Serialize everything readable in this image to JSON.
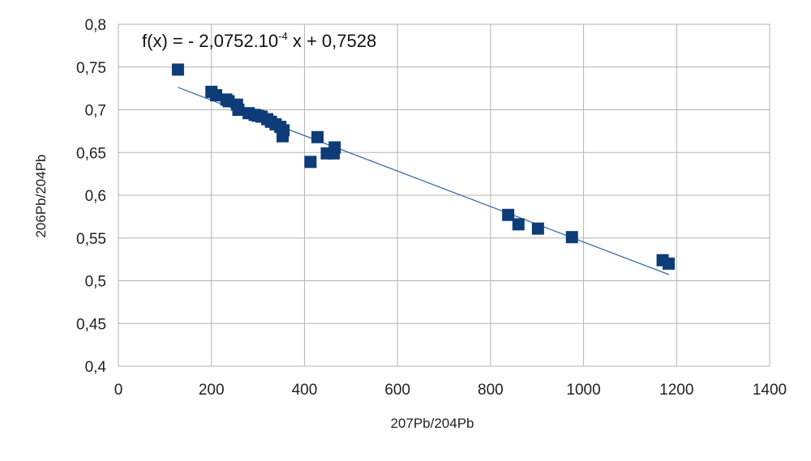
{
  "chart_data": {
    "type": "scatter",
    "xlabel": "207Pb/204Pb",
    "ylabel": "206Pb/204Pb",
    "xlim": [
      0,
      1400
    ],
    "ylim": [
      0.4,
      0.8
    ],
    "x_ticks": [
      "0",
      "200",
      "400",
      "600",
      "800",
      "1000",
      "1200",
      "1400"
    ],
    "y_ticks": [
      "0,4",
      "0,45",
      "0,5",
      "0,55",
      "0,6",
      "0,65",
      "0,7",
      "0,75",
      "0,8"
    ],
    "grid": true,
    "legend": "none",
    "marker_color": "#0d3c78",
    "trendline_color": "#3a6ea8",
    "equation": {
      "prefix": "f(x) = - 2,0752.10",
      "exponent": "-4",
      "suffix": " x + 0,7528"
    },
    "trendline": {
      "slope": -0.00020752,
      "intercept": 0.7528,
      "x_range": [
        128,
        1183
      ]
    },
    "series": [
      {
        "points": [
          [
            128,
            0.747
          ],
          [
            200,
            0.721
          ],
          [
            210,
            0.717
          ],
          [
            232,
            0.712
          ],
          [
            237,
            0.71
          ],
          [
            255,
            0.706
          ],
          [
            258,
            0.7
          ],
          [
            280,
            0.696
          ],
          [
            293,
            0.694
          ],
          [
            300,
            0.693
          ],
          [
            308,
            0.692
          ],
          [
            320,
            0.689
          ],
          [
            328,
            0.686
          ],
          [
            338,
            0.683
          ],
          [
            348,
            0.68
          ],
          [
            355,
            0.676
          ],
          [
            353,
            0.669
          ],
          [
            413,
            0.639
          ],
          [
            428,
            0.668
          ],
          [
            448,
            0.649
          ],
          [
            463,
            0.649
          ],
          [
            465,
            0.656
          ],
          [
            838,
            0.577
          ],
          [
            860,
            0.566
          ],
          [
            902,
            0.561
          ],
          [
            975,
            0.551
          ],
          [
            1170,
            0.524
          ],
          [
            1183,
            0.52
          ]
        ]
      }
    ]
  }
}
